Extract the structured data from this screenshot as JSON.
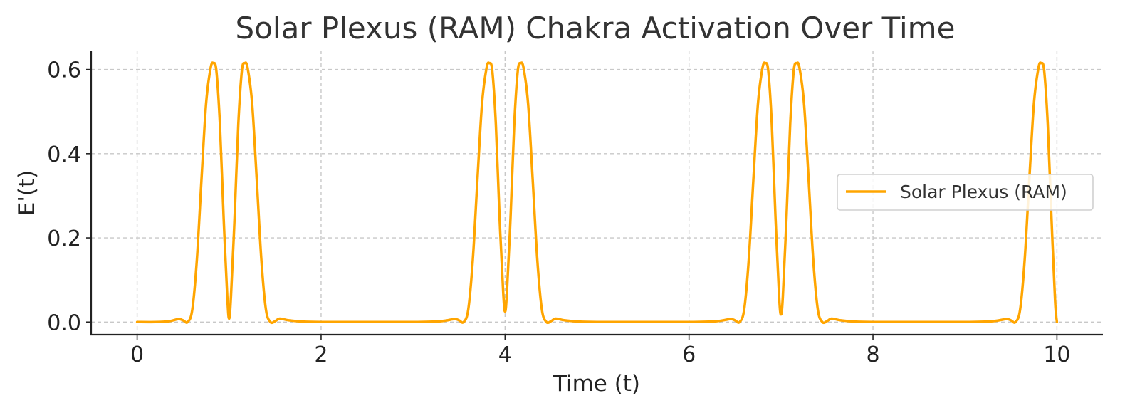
{
  "chart_data": {
    "type": "line",
    "title": "Solar Plexus (RAM) Chakra Activation Over Time",
    "xlabel": "Time (t)",
    "ylabel": "E'(t)",
    "xlim": [
      -0.5,
      10.5
    ],
    "ylim": [
      -0.03,
      0.645
    ],
    "xticks": [
      0,
      2,
      4,
      6,
      8,
      10
    ],
    "xtick_labels": [
      "0",
      "2",
      "4",
      "6",
      "8",
      "10"
    ],
    "yticks": [
      0.0,
      0.2,
      0.4,
      0.6
    ],
    "ytick_labels": [
      "0.0",
      "0.2",
      "0.4",
      "0.6"
    ],
    "grid": true,
    "legend_position": "center-right",
    "series": [
      {
        "name": "Solar Plexus (RAM)",
        "color": "#FFA500",
        "x": [
          0,
          0.2,
          0.35,
          0.45,
          0.5,
          0.55,
          0.6,
          0.65,
          0.7,
          0.75,
          0.8,
          0.83,
          0.86,
          0.9,
          0.94,
          0.98,
          1.0,
          1.02,
          1.06,
          1.1,
          1.14,
          1.17,
          1.2,
          1.25,
          1.3,
          1.35,
          1.4,
          1.45,
          1.5,
          1.55,
          1.65,
          1.8,
          2.0,
          2.5,
          3.0,
          3.3,
          3.45,
          3.5,
          3.55,
          3.6,
          3.65,
          3.7,
          3.75,
          3.8,
          3.83,
          3.86,
          3.9,
          3.94,
          3.98,
          4.0,
          4.02,
          4.06,
          4.1,
          4.14,
          4.17,
          4.2,
          4.25,
          4.3,
          4.35,
          4.4,
          4.45,
          4.5,
          4.55,
          4.65,
          4.8,
          5.0,
          5.5,
          6.0,
          6.3,
          6.45,
          6.5,
          6.55,
          6.6,
          6.65,
          6.7,
          6.75,
          6.8,
          6.83,
          6.86,
          6.9,
          6.94,
          6.98,
          7.0,
          7.02,
          7.06,
          7.1,
          7.14,
          7.17,
          7.2,
          7.25,
          7.3,
          7.35,
          7.4,
          7.45,
          7.5,
          7.55,
          7.65,
          7.8,
          8.0,
          8.5,
          9.0,
          9.3,
          9.45,
          9.5,
          9.55,
          9.6,
          9.65,
          9.7,
          9.75,
          9.8,
          9.83,
          9.86,
          9.9,
          9.94,
          9.98,
          10.0
        ],
        "y": [
          0.0,
          0.0,
          0.002,
          0.007,
          0.004,
          0.0,
          0.03,
          0.15,
          0.34,
          0.52,
          0.605,
          0.615,
          0.6,
          0.47,
          0.25,
          0.06,
          0.008,
          0.06,
          0.25,
          0.47,
          0.6,
          0.615,
          0.605,
          0.52,
          0.34,
          0.15,
          0.03,
          0.0,
          0.002,
          0.008,
          0.004,
          0.001,
          0.0,
          0.0,
          0.0,
          0.002,
          0.007,
          0.004,
          0.0,
          0.03,
          0.15,
          0.34,
          0.52,
          0.605,
          0.615,
          0.6,
          0.47,
          0.25,
          0.07,
          0.025,
          0.07,
          0.25,
          0.47,
          0.6,
          0.615,
          0.605,
          0.52,
          0.34,
          0.15,
          0.03,
          0.0,
          0.002,
          0.008,
          0.004,
          0.001,
          0.0,
          0.0,
          0.0,
          0.002,
          0.007,
          0.004,
          0.0,
          0.03,
          0.15,
          0.34,
          0.52,
          0.605,
          0.615,
          0.6,
          0.47,
          0.25,
          0.06,
          0.018,
          0.06,
          0.25,
          0.47,
          0.6,
          0.615,
          0.605,
          0.52,
          0.34,
          0.15,
          0.03,
          0.0,
          0.002,
          0.008,
          0.004,
          0.001,
          0.0,
          0.0,
          0.0,
          0.002,
          0.007,
          0.004,
          0.0,
          0.03,
          0.15,
          0.34,
          0.52,
          0.605,
          0.615,
          0.6,
          0.47,
          0.25,
          0.05,
          0.0
        ]
      }
    ]
  }
}
